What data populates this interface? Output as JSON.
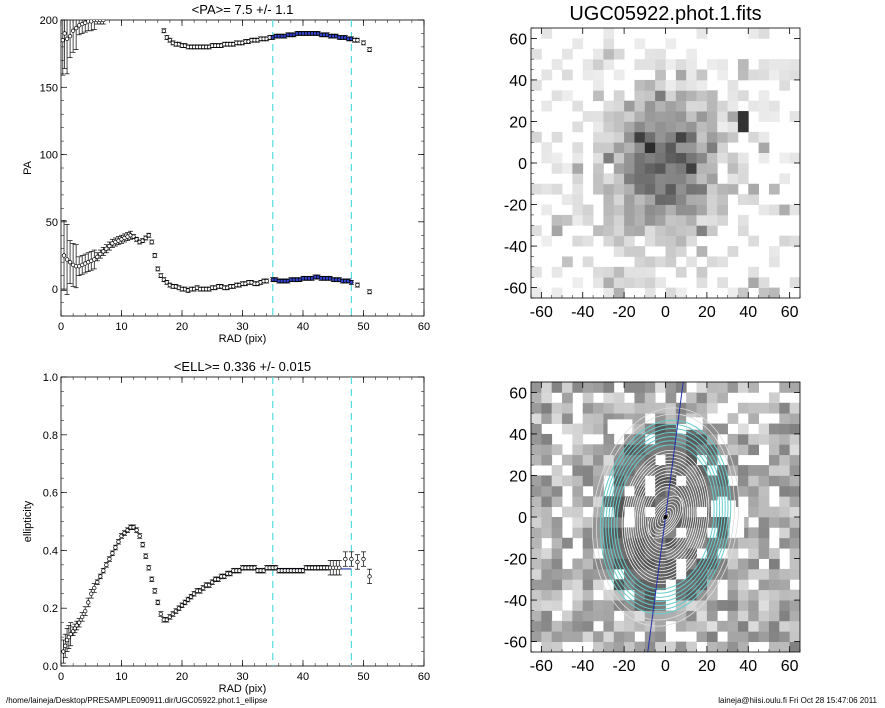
{
  "footer": {
    "path": "/home/laineja/Desktop/PRESAMPLE090911.dir/UGC05922.phot.1_ellipse",
    "stamp": "laineja@hiisi.oulu.fi  Fri Oct 28 15:47:06 2011"
  },
  "colors": {
    "fit_line": "#2233aa",
    "range_line": "#55dddd",
    "fit_points": "#3344cc",
    "image_contour": "#66cccc"
  },
  "chart_data": [
    {
      "id": "pa_profile",
      "type": "scatter",
      "title": "<PA>=   7.5 +/-   1.1",
      "xlabel": "RAD (pix)",
      "ylabel": "PA",
      "xlim": [
        0,
        60
      ],
      "ylim": [
        -20,
        200
      ],
      "xticks": [
        0,
        10,
        20,
        30,
        40,
        50,
        60
      ],
      "yticks": [
        0,
        50,
        100,
        150,
        200
      ],
      "fit_range": [
        35,
        48
      ],
      "fit_value": 7.5,
      "series": [
        {
          "x": [
            0.5,
            1,
            1.5,
            2,
            2.5,
            3,
            3.5,
            4,
            4.5,
            5,
            5.5,
            6,
            6.5,
            7,
            7.5,
            8,
            8.5,
            9,
            9.5,
            10,
            10.5,
            11,
            11.5,
            12,
            12.5,
            13,
            13.5,
            14,
            14.5,
            15,
            15.5,
            16,
            16.5,
            17,
            17.5,
            18,
            18.5,
            19,
            19.5,
            20,
            20.5,
            21,
            21.5,
            22,
            22.5,
            23,
            23.5,
            24,
            24.5,
            25,
            25.5,
            26,
            26.5,
            27,
            27.5,
            28,
            28.5,
            29,
            29.5,
            30,
            30.5,
            31,
            31.5,
            32,
            32.5,
            33,
            33.5,
            34
          ],
          "y": [
            25,
            22,
            20,
            18,
            17,
            17,
            18,
            19,
            20,
            21,
            22,
            24,
            26,
            28,
            30,
            32,
            34,
            35,
            36,
            37,
            38,
            39,
            40,
            39,
            37,
            35,
            36,
            38,
            40,
            35,
            25,
            15,
            10,
            7,
            5,
            3,
            2,
            2,
            1,
            0,
            0,
            -1,
            0,
            0,
            1,
            0,
            0,
            0,
            0,
            1,
            1,
            2,
            2,
            1,
            1,
            2,
            2,
            3,
            3,
            4,
            4,
            5,
            5,
            4,
            4,
            5,
            6,
            6
          ]
        },
        {
          "x": [
            35,
            35.5,
            36,
            36.5,
            37,
            37.5,
            38,
            38.5,
            39,
            39.5,
            40,
            40.5,
            41,
            41.5,
            42,
            42.5,
            43,
            43.5,
            44,
            44.5,
            45,
            45.5,
            46,
            46.5,
            47,
            47.5,
            48
          ],
          "y": [
            7,
            7,
            6,
            6,
            6,
            6,
            7,
            7,
            7,
            7,
            8,
            8,
            8,
            8,
            9,
            9,
            8,
            8,
            8,
            8,
            7,
            7,
            7,
            6,
            6,
            6,
            5
          ]
        },
        {
          "x": [
            49,
            51
          ],
          "y": [
            3,
            -2
          ]
        },
        {
          "x": [
            0.3,
            0.6,
            1,
            1.5,
            2,
            2.5,
            3,
            3.5,
            4,
            4.5,
            5,
            5.5,
            6,
            6.5,
            7
          ],
          "y": [
            185,
            190,
            186,
            188,
            192,
            194,
            196,
            197,
            198,
            199,
            199,
            200,
            200,
            200,
            200
          ]
        },
        {
          "x": [
            17,
            17.5,
            18,
            18.5,
            19,
            19.5,
            20,
            20.5,
            21,
            21.5,
            22,
            22.5,
            23,
            23.5,
            24,
            24.5,
            25,
            25.5,
            26,
            26.5,
            27,
            27.5,
            28,
            28.5,
            29,
            29.5,
            30,
            30.5,
            31,
            31.5,
            32,
            32.5,
            33,
            33.5,
            34,
            34.5,
            35,
            35.5,
            36,
            36.5,
            37,
            37.5,
            38,
            38.5,
            39,
            39.5,
            40,
            40.5,
            41,
            41.5,
            42,
            42.5,
            43,
            43.5,
            44,
            44.5,
            45,
            45.5,
            46,
            46.5,
            47,
            47.5,
            48,
            48.5,
            49,
            50,
            51
          ],
          "y": [
            192,
            187,
            185,
            183,
            182,
            182,
            181,
            181,
            180,
            180,
            180,
            180,
            180,
            180,
            180,
            180,
            181,
            181,
            181,
            181,
            182,
            182,
            182,
            182,
            183,
            183,
            183,
            184,
            184,
            185,
            185,
            185,
            186,
            186,
            186,
            187,
            187,
            188,
            188,
            188,
            188,
            189,
            189,
            189,
            190,
            190,
            190,
            190,
            190,
            190,
            190,
            190,
            189,
            189,
            189,
            188,
            188,
            188,
            187,
            187,
            187,
            186,
            186,
            185,
            185,
            183,
            178
          ]
        }
      ]
    },
    {
      "id": "ellipticity_profile",
      "type": "scatter",
      "title": "<ELL>= 0.336 +/-  0.015",
      "xlabel": "RAD (pix)",
      "ylabel": "ellipticity",
      "xlim": [
        0,
        60
      ],
      "ylim": [
        0,
        1
      ],
      "xticks": [
        0,
        10,
        20,
        30,
        40,
        50,
        60
      ],
      "yticks": [
        0.0,
        0.2,
        0.4,
        0.6,
        0.8,
        1.0
      ],
      "fit_range": [
        35,
        48
      ],
      "fit_value": 0.336,
      "series": [
        {
          "x": [
            0.4,
            0.7,
            1,
            1.3,
            1.6,
            2,
            2.3,
            2.6,
            3,
            3.5,
            4,
            4.5,
            5,
            5.5,
            6,
            6.5,
            7,
            7.5,
            8,
            8.5,
            9,
            9.5,
            10,
            10.5,
            11,
            11.5,
            12,
            12.5,
            13,
            13.5,
            14,
            14.5,
            15,
            15.5,
            16,
            16.5,
            17,
            17.5,
            18,
            18.5,
            19,
            19.5,
            20,
            20.5,
            21,
            21.5,
            22,
            22.5,
            23,
            23.5,
            24,
            24.5,
            25,
            25.5,
            26,
            26.5,
            27,
            27.5,
            28,
            28.5,
            29,
            29.5,
            30,
            30.5,
            31,
            31.5,
            32,
            32.5,
            33,
            33.5,
            34,
            34.5,
            35,
            35.5,
            36,
            36.5,
            37,
            37.5,
            38,
            38.5,
            39,
            39.5,
            40,
            40.5,
            41,
            41.5,
            42,
            42.5,
            43,
            43.5,
            44,
            44.5,
            45,
            45.5,
            46,
            47,
            48,
            49,
            50,
            51
          ],
          "y": [
            0.05,
            0.07,
            0.09,
            0.1,
            0.11,
            0.12,
            0.13,
            0.14,
            0.15,
            0.17,
            0.19,
            0.22,
            0.25,
            0.27,
            0.29,
            0.31,
            0.33,
            0.35,
            0.37,
            0.39,
            0.41,
            0.43,
            0.45,
            0.46,
            0.47,
            0.48,
            0.48,
            0.47,
            0.45,
            0.42,
            0.38,
            0.34,
            0.3,
            0.26,
            0.22,
            0.18,
            0.16,
            0.16,
            0.17,
            0.18,
            0.19,
            0.2,
            0.21,
            0.22,
            0.23,
            0.24,
            0.25,
            0.26,
            0.26,
            0.27,
            0.28,
            0.28,
            0.29,
            0.3,
            0.3,
            0.31,
            0.31,
            0.32,
            0.32,
            0.33,
            0.33,
            0.33,
            0.34,
            0.34,
            0.34,
            0.34,
            0.34,
            0.33,
            0.33,
            0.33,
            0.34,
            0.34,
            0.34,
            0.34,
            0.33,
            0.33,
            0.33,
            0.33,
            0.33,
            0.33,
            0.33,
            0.33,
            0.33,
            0.34,
            0.34,
            0.34,
            0.34,
            0.34,
            0.34,
            0.34,
            0.34,
            0.34,
            0.34,
            0.34,
            0.34,
            0.37,
            0.37,
            0.36,
            0.37,
            0.31
          ]
        }
      ]
    },
    {
      "id": "galaxy_image",
      "type": "heatmap",
      "title": "UGC05922.phot.1.fits",
      "xlim": [
        -65,
        65
      ],
      "ylim": [
        -65,
        65
      ],
      "xticks": [
        -60,
        -40,
        -20,
        0,
        20,
        40,
        60
      ],
      "yticks": [
        -60,
        -40,
        -20,
        0,
        20,
        40,
        60
      ],
      "colormap": "inverted-gray"
    },
    {
      "id": "ellipse_overlay",
      "type": "heatmap",
      "xlim": [
        -65,
        65
      ],
      "ylim": [
        -65,
        65
      ],
      "xticks": [
        -60,
        -40,
        -20,
        0,
        20,
        40,
        60
      ],
      "yticks": [
        -60,
        -40,
        -20,
        0,
        20,
        40,
        60
      ],
      "colormap": "inverted-gray",
      "pa_deg": 7.5,
      "ellipticity": 0.336,
      "fit_range": [
        35,
        48
      ]
    }
  ]
}
